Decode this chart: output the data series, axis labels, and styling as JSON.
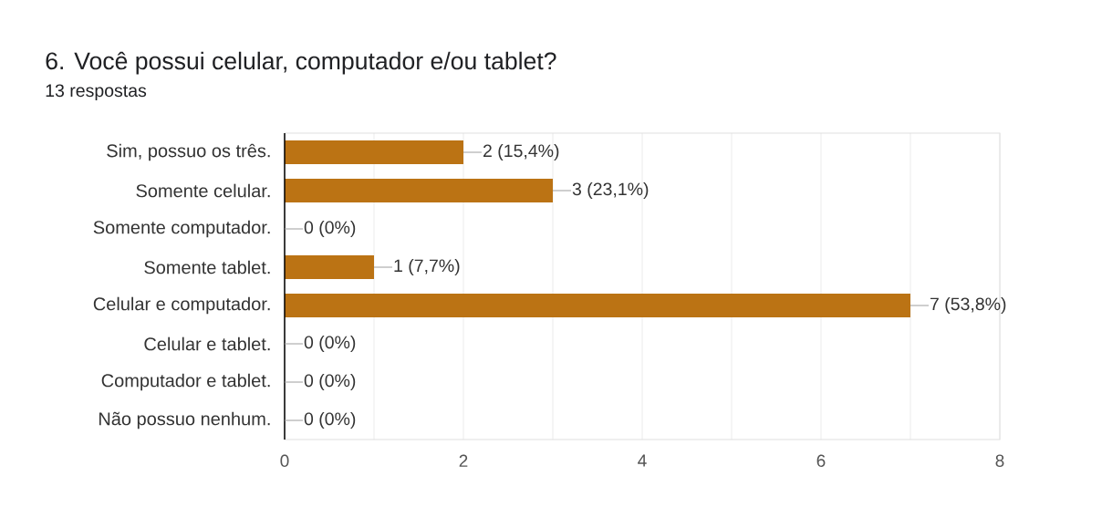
{
  "chart_data": {
    "type": "bar",
    "orientation": "horizontal",
    "title": "6. Você possui celular, computador e/ou tablet?",
    "subtitle": "13 respostas",
    "categories": [
      "Sim, possuo os três.",
      "Somente celular.",
      "Somente computador.",
      "Somente tablet.",
      "Celular e computador.",
      "Celular e tablet.",
      "Computador e tablet.",
      "Não possuo nenhum."
    ],
    "values": [
      2,
      3,
      0,
      1,
      7,
      0,
      0,
      0
    ],
    "value_labels": [
      "2 (15,4%)",
      "3 (23,1%)",
      "0 (0%)",
      "1 (7,7%)",
      "7 (53,8%)",
      "0 (0%)",
      "0 (0%)",
      "0 (0%)"
    ],
    "color": "#bb7314",
    "xlim": [
      0,
      8
    ],
    "xticks": [
      0,
      {
        "value": 1,
        "label": null
      },
      2,
      {
        "value": 3,
        "label": null
      },
      4,
      {
        "value": 5,
        "label": null
      },
      6,
      {
        "value": 7,
        "label": null
      },
      8
    ],
    "grid": "x"
  }
}
